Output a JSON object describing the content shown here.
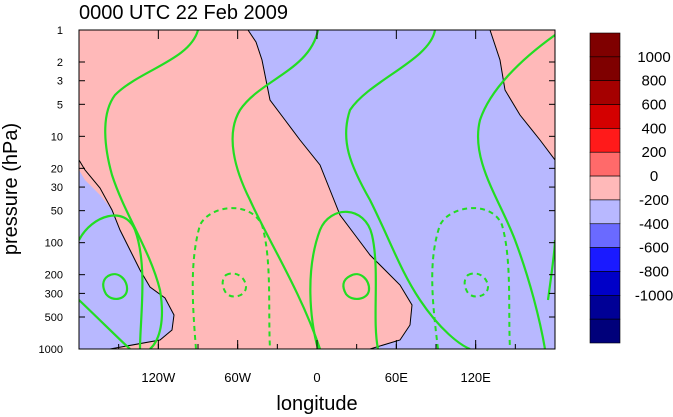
{
  "chart_data": {
    "type": "heatmap",
    "title": "0000 UTC 22 Feb 2009",
    "xlabel": "longitude",
    "ylabel": "pressure (hPa)",
    "x_axis": {
      "range": [
        -180,
        180
      ],
      "ticks": [
        {
          "value": -120,
          "label": "120W"
        },
        {
          "value": -60,
          "label": "60W"
        },
        {
          "value": 0,
          "label": "0"
        },
        {
          "value": 60,
          "label": "60E"
        },
        {
          "value": 120,
          "label": "120E"
        }
      ]
    },
    "y_axis": {
      "range": [
        1000,
        1
      ],
      "scale": "log",
      "ticks": [
        1,
        2,
        3,
        5,
        10,
        20,
        30,
        50,
        100,
        200,
        300,
        500,
        1000
      ]
    },
    "colorbar": {
      "levels": [
        {
          "label": "1000",
          "color": "#7f0000"
        },
        {
          "label": "800",
          "color": "#a50000"
        },
        {
          "label": "600",
          "color": "#d40000"
        },
        {
          "label": "400",
          "color": "#ff1a1a"
        },
        {
          "label": "200",
          "color": "#ff6a6a"
        },
        {
          "label": "0",
          "color": "#ffb9b9"
        },
        {
          "label": "-200",
          "color": "#b8b8ff"
        },
        {
          "label": "-400",
          "color": "#6a6aff"
        },
        {
          "label": "-600",
          "color": "#1a1aff"
        },
        {
          "label": "-800",
          "color": "#0000c8"
        },
        {
          "label": "-1000",
          "color": "#000096"
        }
      ],
      "extra_bottom_color": "#00007a"
    },
    "shading": {
      "positive_color": "#ffb9b9",
      "negative_color": "#b8b8ff"
    },
    "contour_lines": {
      "color": "#22dd22",
      "positive_style": "solid",
      "negative_style": "dashed"
    }
  }
}
